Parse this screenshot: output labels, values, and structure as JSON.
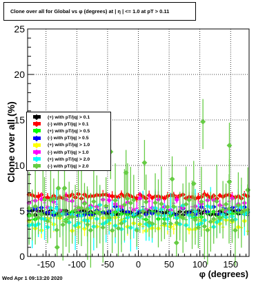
{
  "title": "Clone  over all for Global vs φ (degrees) at | η | <= 1.0 at pT > 0.11",
  "timestamp": "Wed Apr  1 09:13:20 2020",
  "chart_data": {
    "type": "scatter",
    "title": "Clone  over all for Global vs φ (degrees) at | η | <= 1.0 at pT > 0.11",
    "xlabel": "φ (degrees)",
    "ylabel": "Clone  over all (%)",
    "xlim": [
      -180,
      180
    ],
    "ylim": [
      0,
      25
    ],
    "x_ticks": [
      "-150",
      "-100",
      "-50",
      "0",
      "50",
      "100",
      "150"
    ],
    "x_tick_values": [
      -150,
      -100,
      -50,
      0,
      50,
      100,
      150
    ],
    "y_ticks": [
      "0",
      "5",
      "10",
      "15",
      "20",
      "25"
    ],
    "y_tick_values": [
      0,
      5,
      10,
      15,
      20,
      25
    ],
    "grid": true,
    "legend_position": "left",
    "series": [
      {
        "name": "(+) with pT/|q| > 0.1",
        "color": "#000000",
        "mean": 4.8,
        "spread": 0.25,
        "err": 0.35,
        "style": "diamond"
      },
      {
        "name": "(-) with pT/|q| > 0.1",
        "color": "#ff0000",
        "mean": 6.6,
        "spread": 0.25,
        "err": 0.4,
        "style": "diamond"
      },
      {
        "name": "(+) with pT/|q| > 0.5",
        "color": "#00ff00",
        "mean": 4.5,
        "spread": 0.5,
        "err": 0.5,
        "style": "diamond"
      },
      {
        "name": "(-) with pT/|q| > 0.5",
        "color": "#0000ff",
        "mean": 5.0,
        "spread": 0.5,
        "err": 0.5,
        "style": "diamond"
      },
      {
        "name": "(+) with pT/|q| > 1.0",
        "color": "#ffff00",
        "mean": 3.5,
        "spread": 0.8,
        "err": 0.7,
        "style": "diamond"
      },
      {
        "name": "(-) with pT/|q| > 1.0",
        "color": "#ff00ff",
        "mean": 5.6,
        "spread": 0.8,
        "err": 0.7,
        "style": "diamond"
      },
      {
        "name": "(+) with pT/|q| > 2.0",
        "color": "#00ffff",
        "mean": 4.3,
        "spread": 1.4,
        "err": 1.8,
        "style": "diamond"
      },
      {
        "name": "(-) with pT/|q| > 2.0",
        "color": "#66cc44",
        "mean": 4.6,
        "spread": 1.8,
        "err": 2.8,
        "style": "diamond"
      }
    ],
    "outliers": [
      {
        "x": 105,
        "y": 14.8
      },
      {
        "x": 148,
        "y": 12.2
      },
      {
        "x": -155,
        "y": 9.9
      },
      {
        "x": 10,
        "y": 10.3
      },
      {
        "x": -83,
        "y": 5.2
      },
      {
        "x": 55,
        "y": 8.5
      },
      {
        "x": -130,
        "y": 7.5
      },
      {
        "x": -120,
        "y": 7.5
      },
      {
        "x": -45,
        "y": 11.5
      },
      {
        "x": 148,
        "y": 8.2
      },
      {
        "x": 90,
        "y": 8.0
      },
      {
        "x": -20,
        "y": 9.2
      },
      {
        "x": 178,
        "y": 7.3
      },
      {
        "x": 62,
        "y": 1.5
      },
      {
        "x": -132,
        "y": 1.0
      }
    ]
  }
}
